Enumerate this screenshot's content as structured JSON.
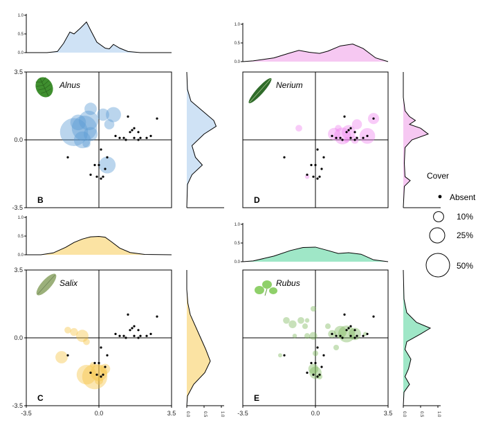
{
  "chart_data": {
    "type": "scatter",
    "xlim": [
      -3.5,
      3.5
    ],
    "ylim": [
      -3.5,
      3.5
    ],
    "x_ticks": [
      "-3.5",
      "0.0",
      "3.5"
    ],
    "y_ticks": [
      "3.5",
      "0.0",
      "-3.5"
    ],
    "density_ticks": [
      "0.0",
      "0.5",
      "1.0"
    ],
    "density_tick_values": [
      0,
      0.5,
      1.0
    ],
    "absent_points": [
      [
        1.4,
        1.2
      ],
      [
        2.8,
        1.1
      ],
      [
        1.6,
        0.5
      ],
      [
        1.5,
        0.4
      ],
      [
        1.7,
        0.6
      ],
      [
        1.9,
        0.4
      ],
      [
        2.5,
        0.2
      ],
      [
        1.2,
        0.1
      ],
      [
        1.0,
        0.1
      ],
      [
        0.8,
        0.2
      ],
      [
        2.0,
        0.1
      ],
      [
        1.7,
        0.1
      ],
      [
        2.3,
        0.1
      ],
      [
        1.9,
        0.0
      ],
      [
        1.3,
        0.0
      ],
      [
        0.1,
        -0.5
      ],
      [
        0.4,
        -0.9
      ],
      [
        0.0,
        -1.3
      ],
      [
        -0.2,
        -1.3
      ],
      [
        0.3,
        -1.5
      ],
      [
        0.2,
        -1.9
      ],
      [
        -1.5,
        -0.9
      ],
      [
        -0.4,
        -1.8
      ],
      [
        0.1,
        -2.0
      ],
      [
        -0.1,
        -1.9
      ]
    ],
    "panels": [
      {
        "label": "B",
        "species": "Alnus",
        "color": "#5b9bd5",
        "density_fill": "#cfe2f5",
        "top_density": [
          [
            -3.5,
            0
          ],
          [
            -2.5,
            0
          ],
          [
            -2.0,
            0.03
          ],
          [
            -1.7,
            0.25
          ],
          [
            -1.4,
            0.55
          ],
          [
            -1.2,
            0.5
          ],
          [
            -0.9,
            0.65
          ],
          [
            -0.6,
            0.82
          ],
          [
            -0.4,
            0.6
          ],
          [
            -0.1,
            0.28
          ],
          [
            0.3,
            0.12
          ],
          [
            0.5,
            0.1
          ],
          [
            0.7,
            0.22
          ],
          [
            1.0,
            0.12
          ],
          [
            1.4,
            0.03
          ],
          [
            2.0,
            0
          ],
          [
            3.5,
            0
          ]
        ],
        "right_density": [
          [
            -3.5,
            0
          ],
          [
            -2.3,
            0.02
          ],
          [
            -1.8,
            0.15
          ],
          [
            -1.3,
            0.45
          ],
          [
            -0.9,
            0.25
          ],
          [
            -0.3,
            0.15
          ],
          [
            0.3,
            0.5
          ],
          [
            0.7,
            0.85
          ],
          [
            1.0,
            0.78
          ],
          [
            1.5,
            0.45
          ],
          [
            2.0,
            0.12
          ],
          [
            2.6,
            0.02
          ],
          [
            3.5,
            0
          ]
        ],
        "cover_points": [
          [
            -1.2,
            0.4,
            50
          ],
          [
            -1.0,
            0.9,
            28
          ],
          [
            -0.7,
            0.6,
            45
          ],
          [
            -0.5,
            1.0,
            35
          ],
          [
            -0.4,
            1.6,
            22
          ],
          [
            -0.8,
            0.0,
            30
          ],
          [
            -0.4,
            0.3,
            25
          ],
          [
            0.2,
            1.3,
            22
          ],
          [
            0.7,
            1.3,
            27
          ],
          [
            0.5,
            0.8,
            18
          ],
          [
            -0.6,
            -0.2,
            14
          ],
          [
            0.4,
            -1.3,
            30
          ]
        ]
      },
      {
        "label": "C",
        "species": "Salix",
        "color": "#f5c342",
        "density_fill": "#fbe3a3",
        "top_density": [
          [
            -3.5,
            0
          ],
          [
            -2.8,
            0
          ],
          [
            -2.2,
            0.05
          ],
          [
            -1.6,
            0.2
          ],
          [
            -1.2,
            0.33
          ],
          [
            -0.8,
            0.42
          ],
          [
            -0.4,
            0.48
          ],
          [
            0.0,
            0.49
          ],
          [
            0.3,
            0.47
          ],
          [
            0.6,
            0.35
          ],
          [
            1.0,
            0.18
          ],
          [
            1.5,
            0.06
          ],
          [
            2.2,
            0.01
          ],
          [
            3.5,
            0
          ]
        ],
        "right_density": [
          [
            -3.5,
            0
          ],
          [
            -3.0,
            0.02
          ],
          [
            -2.4,
            0.2
          ],
          [
            -1.8,
            0.52
          ],
          [
            -1.2,
            0.68
          ],
          [
            -0.6,
            0.55
          ],
          [
            0.0,
            0.4
          ],
          [
            0.6,
            0.25
          ],
          [
            1.2,
            0.1
          ],
          [
            1.8,
            0.03
          ],
          [
            2.5,
            0
          ],
          [
            3.5,
            0
          ]
        ],
        "cover_points": [
          [
            -1.5,
            0.4,
            12
          ],
          [
            -1.2,
            0.3,
            14
          ],
          [
            -0.8,
            0.1,
            22
          ],
          [
            -0.6,
            -0.2,
            12
          ],
          [
            -1.8,
            -1.0,
            22
          ],
          [
            -0.6,
            -1.9,
            35
          ],
          [
            -0.2,
            -2.0,
            45
          ],
          [
            0.0,
            -1.8,
            30
          ],
          [
            0.3,
            -1.6,
            18
          ],
          [
            -0.3,
            -1.4,
            10
          ],
          [
            0.0,
            -2.2,
            15
          ]
        ]
      },
      {
        "label": "D",
        "species": "Nerium",
        "color": "#ee82ee",
        "density_fill": "#f6c8f2",
        "top_density": [
          [
            -3.5,
            0
          ],
          [
            -3.0,
            0.02
          ],
          [
            -2.0,
            0.1
          ],
          [
            -1.3,
            0.22
          ],
          [
            -0.8,
            0.3
          ],
          [
            -0.3,
            0.25
          ],
          [
            0.2,
            0.22
          ],
          [
            0.6,
            0.28
          ],
          [
            1.2,
            0.42
          ],
          [
            1.8,
            0.47
          ],
          [
            2.3,
            0.35
          ],
          [
            2.9,
            0.1
          ],
          [
            3.5,
            0
          ]
        ],
        "right_density": [
          [
            -3.5,
            0
          ],
          [
            -2.4,
            0.03
          ],
          [
            -2.1,
            0.2
          ],
          [
            -1.9,
            0.05
          ],
          [
            -1.2,
            0.03
          ],
          [
            -0.4,
            0.05
          ],
          [
            0.0,
            0.25
          ],
          [
            0.3,
            0.72
          ],
          [
            0.6,
            0.5
          ],
          [
            0.8,
            0.18
          ],
          [
            1.0,
            0.35
          ],
          [
            1.2,
            0.18
          ],
          [
            1.5,
            0.05
          ],
          [
            2.2,
            0
          ],
          [
            3.5,
            0
          ]
        ],
        "cover_points": [
          [
            0.9,
            0.3,
            22
          ],
          [
            1.3,
            0.2,
            30
          ],
          [
            1.6,
            0.4,
            25
          ],
          [
            2.0,
            0.8,
            18
          ],
          [
            2.5,
            0.2,
            28
          ],
          [
            2.8,
            1.1,
            20
          ],
          [
            1.9,
            0.0,
            14
          ],
          [
            1.1,
            0.6,
            12
          ],
          [
            -0.8,
            0.6,
            12
          ],
          [
            -0.4,
            -1.9,
            8
          ],
          [
            1.5,
            0.0,
            10
          ]
        ]
      },
      {
        "label": "E",
        "species": "Rubus",
        "color": "#7cb85a",
        "density_fill": "#9fe7c7",
        "top_density": [
          [
            -3.5,
            0
          ],
          [
            -3.0,
            0.02
          ],
          [
            -2.0,
            0.15
          ],
          [
            -1.2,
            0.3
          ],
          [
            -0.6,
            0.38
          ],
          [
            0.0,
            0.39
          ],
          [
            0.6,
            0.3
          ],
          [
            1.1,
            0.22
          ],
          [
            1.6,
            0.24
          ],
          [
            2.2,
            0.2
          ],
          [
            2.8,
            0.05
          ],
          [
            3.5,
            0
          ]
        ],
        "right_density": [
          [
            -3.5,
            0
          ],
          [
            -2.8,
            0.02
          ],
          [
            -2.4,
            0.18
          ],
          [
            -2.0,
            0.05
          ],
          [
            -1.6,
            0.15
          ],
          [
            -1.1,
            0.22
          ],
          [
            -0.6,
            0.05
          ],
          [
            -0.2,
            0.1
          ],
          [
            0.2,
            0.5
          ],
          [
            0.5,
            0.78
          ],
          [
            0.8,
            0.38
          ],
          [
            1.3,
            0.1
          ],
          [
            2.0,
            0.02
          ],
          [
            3.5,
            0
          ]
        ],
        "cover_points": [
          [
            -1.4,
            0.9,
            12
          ],
          [
            -1.1,
            0.7,
            14
          ],
          [
            -0.7,
            0.9,
            12
          ],
          [
            -0.1,
            1.5,
            10
          ],
          [
            -0.4,
            0.9,
            8
          ],
          [
            -0.5,
            0.6,
            10
          ],
          [
            -0.1,
            0.1,
            14
          ],
          [
            0.6,
            0.6,
            10
          ],
          [
            0.8,
            0.2,
            14
          ],
          [
            1.2,
            0.3,
            22
          ],
          [
            1.5,
            0.2,
            30
          ],
          [
            1.9,
            0.2,
            22
          ],
          [
            1.0,
            -0.5,
            10
          ],
          [
            2.4,
            0.2,
            6
          ],
          [
            -1.7,
            -0.9,
            6
          ],
          [
            0.0,
            -0.8,
            10
          ],
          [
            -0.1,
            -1.6,
            18
          ],
          [
            0.0,
            -1.8,
            22
          ],
          [
            0.2,
            -2.0,
            10
          ],
          [
            -0.4,
            0.1,
            10
          ],
          [
            -1.0,
            0.1,
            8
          ]
        ]
      }
    ],
    "legend": {
      "title": "Cover",
      "items": [
        {
          "label": "Absent",
          "value": 0
        },
        {
          "label": "10%",
          "value": 10
        },
        {
          "label": "25%",
          "value": 25
        },
        {
          "label": "50%",
          "value": 50
        }
      ]
    }
  },
  "icons": [
    "alnus-leaf-icon",
    "nerium-leaf-icon",
    "salix-leaf-icon",
    "rubus-leaf-icon"
  ]
}
